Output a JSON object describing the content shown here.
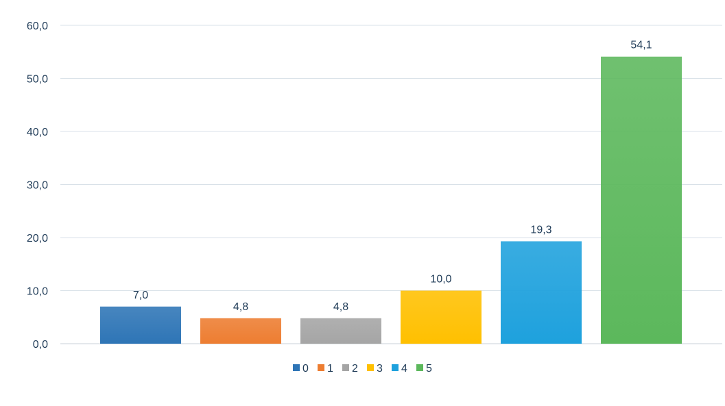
{
  "chart_data": {
    "type": "bar",
    "categories": [
      "0",
      "1",
      "2",
      "3",
      "4",
      "5"
    ],
    "values": [
      7.0,
      4.8,
      4.8,
      10.0,
      19.3,
      54.1
    ],
    "value_labels": [
      "7,0",
      "4,8",
      "4,8",
      "10,0",
      "19,3",
      "54,1"
    ],
    "colors": [
      "#2e75b6",
      "#ed7d31",
      "#a5a5a5",
      "#ffc000",
      "#1ea1dd",
      "#5cb85c"
    ],
    "ylim": [
      0,
      60
    ],
    "yticks": [
      0,
      10,
      20,
      30,
      40,
      50,
      60
    ],
    "ytick_labels": [
      "0,0",
      "10,0",
      "20,0",
      "30,0",
      "40,0",
      "50,0",
      "60,0"
    ],
    "grid": true,
    "legend_position": "bottom",
    "legend_labels": [
      "0",
      "1",
      "2",
      "3",
      "4",
      "5"
    ],
    "title": "",
    "xlabel": "",
    "ylabel": ""
  }
}
